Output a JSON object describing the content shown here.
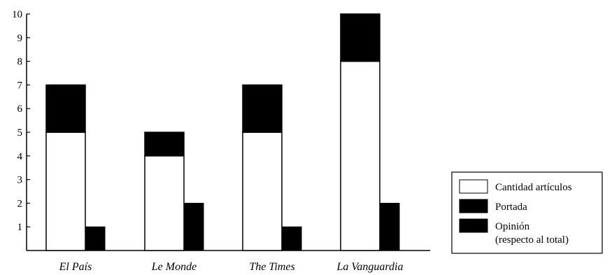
{
  "chart_data": {
    "type": "bar",
    "categories": [
      "El País",
      "Le Monde",
      "The Times",
      "La Vanguardia"
    ],
    "stacked_series": [
      {
        "name": "Cantidad artículos",
        "values": [
          5,
          4,
          5,
          8
        ],
        "color": "#ffffff"
      },
      {
        "name": "Portada",
        "values": [
          2,
          1,
          2,
          2
        ],
        "color": "#000000"
      }
    ],
    "side_series": {
      "name": "Opinión",
      "values": [
        1,
        2,
        1,
        2
      ],
      "color": "#000000"
    },
    "y_ticks": [
      "1",
      "2",
      "3",
      "4",
      "5",
      "6",
      "7",
      "8",
      "9",
      "10"
    ],
    "ylim": [
      0,
      10
    ],
    "grid": false,
    "legend": {
      "placement": "right",
      "entries": [
        {
          "label": "Cantidad artículos",
          "color": "#ffffff"
        },
        {
          "label": "Portada",
          "color": "#000000"
        },
        {
          "label": "Opinión",
          "sublabel": "(respecto al total)",
          "color": "#000000"
        }
      ]
    }
  }
}
